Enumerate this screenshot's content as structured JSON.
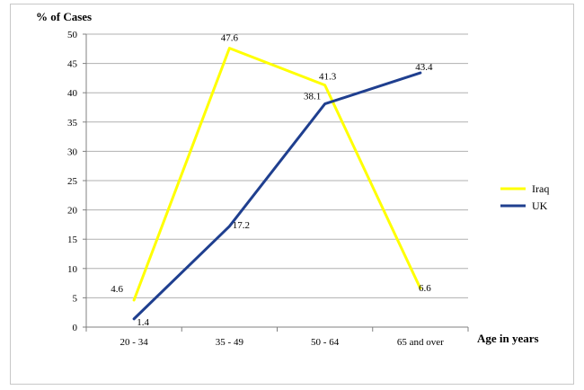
{
  "chart_data": {
    "type": "line",
    "ylabel": "% of Cases",
    "xlabel": "Age in years",
    "categories": [
      "20 - 34",
      "35 - 49",
      "50 - 64",
      "65 and over"
    ],
    "ylim": [
      0,
      50
    ],
    "yticks": [
      0,
      5,
      10,
      15,
      20,
      25,
      30,
      35,
      40,
      45,
      50
    ],
    "grid": true,
    "legend_position": "right",
    "series": [
      {
        "name": "Iraq",
        "color": "#ffff00",
        "values": [
          4.6,
          47.6,
          41.3,
          6.6
        ]
      },
      {
        "name": "UK",
        "color": "#1f3f8f",
        "values": [
          1.4,
          17.2,
          38.1,
          43.4
        ]
      }
    ]
  }
}
